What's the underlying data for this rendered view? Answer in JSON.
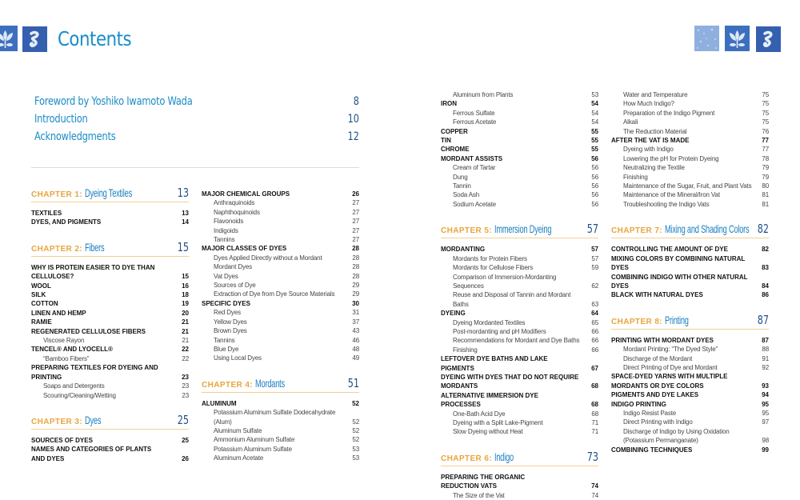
{
  "title": "Contents",
  "colors": {
    "title_blue": "#1a8cc8",
    "chapter_orange": "#e9a53c",
    "tile_blue": "#3d6fbf"
  },
  "front_matter": [
    {
      "text": "Foreword by Yoshiko Iwamoto Wada",
      "page": "8"
    },
    {
      "text": "Introduction",
      "page": "10"
    },
    {
      "text": "Acknowledgments",
      "page": "12"
    }
  ],
  "columns": [
    [
      {
        "type": "chapter",
        "label": "CHAPTER 1:",
        "text": "Dyeing Textiles",
        "page": "13"
      },
      {
        "type": "main",
        "text": "TEXTILES",
        "page": "13"
      },
      {
        "type": "main",
        "text": "DYES, AND PIGMENTS",
        "page": "14"
      },
      {
        "type": "chapter",
        "label": "CHAPTER 2:",
        "text": "Fibers",
        "page": "15"
      },
      {
        "type": "main",
        "text": "WHY IS PROTEIN EASIER TO DYE THAN\nCELLULOSE?",
        "page": "15"
      },
      {
        "type": "main",
        "text": "WOOL",
        "page": "16"
      },
      {
        "type": "main",
        "text": "SILK",
        "page": "18"
      },
      {
        "type": "main",
        "text": "COTTON",
        "page": "19"
      },
      {
        "type": "main",
        "text": "LINEN AND HEMP",
        "page": "20"
      },
      {
        "type": "main",
        "text": "RAMIE",
        "page": "21"
      },
      {
        "type": "main",
        "text": "REGENERATED CELLULOSE FIBERS",
        "page": "21"
      },
      {
        "type": "sub",
        "text": "Viscose Rayon",
        "page": "21"
      },
      {
        "type": "main",
        "text": "TENCEL® AND LYOCELL®",
        "page": "22"
      },
      {
        "type": "sub",
        "text": "“Bamboo Fibers”",
        "page": "22"
      },
      {
        "type": "main",
        "text": "PREPARING TEXTILES FOR DYEING AND\nPRINTING",
        "page": "23"
      },
      {
        "type": "sub",
        "text": "Soaps and Detergents",
        "page": "23"
      },
      {
        "type": "sub",
        "text": "Scouring/Cleaning/Wetting",
        "page": "23"
      },
      {
        "type": "chapter",
        "label": "CHAPTER 3:",
        "text": "Dyes",
        "page": "25"
      },
      {
        "type": "main",
        "text": "SOURCES OF DYES",
        "page": "25"
      },
      {
        "type": "main",
        "text": "NAMES AND CATEGORIES OF PLANTS\nAND DYES",
        "page": "26"
      }
    ],
    [
      {
        "type": "main",
        "text": "MAJOR CHEMICAL GROUPS",
        "page": "26"
      },
      {
        "type": "sub",
        "text": "Anthraquinoids",
        "page": "27"
      },
      {
        "type": "sub",
        "text": "Naphthoquinoids",
        "page": "27"
      },
      {
        "type": "sub",
        "text": "Flavonoids",
        "page": "27"
      },
      {
        "type": "sub",
        "text": "Indigoids",
        "page": "27"
      },
      {
        "type": "sub",
        "text": "Tannins",
        "page": "27"
      },
      {
        "type": "main",
        "text": "MAJOR CLASSES OF DYES",
        "page": "28"
      },
      {
        "type": "sub",
        "text": "Dyes Applied Directly without a Mordant",
        "page": "28"
      },
      {
        "type": "sub",
        "text": "Mordant Dyes",
        "page": "28"
      },
      {
        "type": "sub",
        "text": "Vat Dyes",
        "page": "28"
      },
      {
        "type": "sub",
        "text": "Sources of Dye",
        "page": "29"
      },
      {
        "type": "sub",
        "text": "Extraction of Dye from Dye Source Materials",
        "page": "29"
      },
      {
        "type": "main",
        "text": "SPECIFIC DYES",
        "page": "30"
      },
      {
        "type": "sub",
        "text": "Red Dyes",
        "page": "31"
      },
      {
        "type": "sub",
        "text": "Yellow Dyes",
        "page": "37"
      },
      {
        "type": "sub",
        "text": "Brown Dyes",
        "page": "43"
      },
      {
        "type": "sub",
        "text": "Tannins",
        "page": "46"
      },
      {
        "type": "sub",
        "text": "Blue Dye",
        "page": "48"
      },
      {
        "type": "sub",
        "text": "Using Local Dyes",
        "page": "49"
      },
      {
        "type": "chapter",
        "label": "CHAPTER 4:",
        "text": "Mordants",
        "page": "51"
      },
      {
        "type": "main",
        "text": "ALUMINUM",
        "page": "52"
      },
      {
        "type": "sub",
        "text": "Potassium Aluminum Sulfate Dodecahydrate\n    (Alum)",
        "page": "52"
      },
      {
        "type": "sub",
        "text": "Aluminum Sulfate",
        "page": "52"
      },
      {
        "type": "sub",
        "text": "Ammonium Aluminum Sulfate",
        "page": "52"
      },
      {
        "type": "sub",
        "text": "Potassium Aluminum Sulfate",
        "page": "53"
      },
      {
        "type": "sub",
        "text": "Aluminum Acetate",
        "page": "53"
      }
    ],
    [
      {
        "type": "sub",
        "text": "Aluminum from Plants",
        "page": "53"
      },
      {
        "type": "main",
        "text": "IRON",
        "page": "54"
      },
      {
        "type": "sub",
        "text": "Ferrous Sulfate",
        "page": "54"
      },
      {
        "type": "sub",
        "text": "Ferrous Acetate",
        "page": "54"
      },
      {
        "type": "main",
        "text": "COPPER",
        "page": "55"
      },
      {
        "type": "main",
        "text": "TIN",
        "page": "55"
      },
      {
        "type": "main",
        "text": "CHROME",
        "page": "55"
      },
      {
        "type": "main",
        "text": "MORDANT ASSISTS",
        "page": "56"
      },
      {
        "type": "sub",
        "text": "Cream of Tartar",
        "page": "56"
      },
      {
        "type": "sub",
        "text": "Dung",
        "page": "56"
      },
      {
        "type": "sub",
        "text": "Tannin",
        "page": "56"
      },
      {
        "type": "sub",
        "text": "Soda Ash",
        "page": "56"
      },
      {
        "type": "sub",
        "text": "Sodium Acetate",
        "page": "56"
      },
      {
        "type": "chapter",
        "label": "CHAPTER 5:",
        "text": "Immersion Dyeing",
        "page": "57"
      },
      {
        "type": "main",
        "text": "MORDANTING",
        "page": "57"
      },
      {
        "type": "sub",
        "text": "Mordants for Protein Fibers",
        "page": "57"
      },
      {
        "type": "sub",
        "text": "Mordants for Cellulose Fibers",
        "page": "59"
      },
      {
        "type": "sub",
        "text": "Comparison of Immersion-Mordanting Sequences",
        "page": "62"
      },
      {
        "type": "sub",
        "text": "Reuse and Disposal of Tannin and Mordant Baths",
        "page": "63"
      },
      {
        "type": "main",
        "text": "DYEING",
        "page": "64"
      },
      {
        "type": "sub",
        "text": "Dyeing Mordanted Textiles",
        "page": "65"
      },
      {
        "type": "sub",
        "text": "Post-mordanting and pH Modifiers",
        "page": "66"
      },
      {
        "type": "sub",
        "text": "Recommendations for Mordant and Dye Baths",
        "page": "66"
      },
      {
        "type": "sub",
        "text": "Finishing",
        "page": "66"
      },
      {
        "type": "main",
        "text": "LEFTOVER DYE BATHS AND LAKE PIGMENTS",
        "page": "67"
      },
      {
        "type": "main",
        "text": "DYEING WITH DYES THAT DO NOT REQUIRE\nMORDANTS",
        "page": "68"
      },
      {
        "type": "main",
        "text": "ALTERNATIVE IMMERSION DYE PROCESSES",
        "page": "68"
      },
      {
        "type": "sub",
        "text": "One-Bath Acid Dye",
        "page": "68"
      },
      {
        "type": "sub",
        "text": "Dyeing with a Split Lake-Pigment",
        "page": "71"
      },
      {
        "type": "sub",
        "text": "Slow Dyeing without Heat",
        "page": "71"
      },
      {
        "type": "chapter",
        "label": "CHAPTER 6:",
        "text": "Indigo",
        "page": "73"
      },
      {
        "type": "main",
        "text": "PREPARING THE ORGANIC\nREDUCTION VATS",
        "page": "74"
      },
      {
        "type": "sub",
        "text": "The Size of the Vat",
        "page": "74"
      }
    ],
    [
      {
        "type": "sub",
        "text": "Water and Temperature",
        "page": "75"
      },
      {
        "type": "sub",
        "text": "How Much Indigo?",
        "page": "75"
      },
      {
        "type": "sub",
        "text": "Preparation of the Indigo Pigment",
        "page": "75"
      },
      {
        "type": "sub",
        "text": "Alkali",
        "page": "75"
      },
      {
        "type": "sub",
        "text": "The Reduction Material",
        "page": "76"
      },
      {
        "type": "main",
        "text": "AFTER THE VAT IS MADE",
        "page": "77"
      },
      {
        "type": "sub",
        "text": "Dyeing with Indigo",
        "page": "77"
      },
      {
        "type": "sub",
        "text": "Lowering the pH for Protein Dyeing",
        "page": "78"
      },
      {
        "type": "sub",
        "text": "Neutralizing the Textile",
        "page": "79"
      },
      {
        "type": "sub",
        "text": "Finishing",
        "page": "79"
      },
      {
        "type": "sub",
        "text": "Maintenance of the Sugar, Fruit, and Plant Vats",
        "page": "80"
      },
      {
        "type": "sub",
        "text": "Maintenance of the Mineral/Iron Vat",
        "page": "81"
      },
      {
        "type": "sub",
        "text": "Troubleshooting the Indigo Vats",
        "page": "81"
      },
      {
        "type": "chapter",
        "label": "CHAPTER 7:",
        "text": "Mixing and Shading Colors",
        "page": "82"
      },
      {
        "type": "main",
        "text": "CONTROLLING THE AMOUNT OF DYE",
        "page": "82"
      },
      {
        "type": "main",
        "text": "MIXING COLORS BY COMBINING NATURAL\nDYES",
        "page": "83"
      },
      {
        "type": "main",
        "text": "COMBINING INDIGO WITH OTHER NATURAL\nDYES",
        "page": "84"
      },
      {
        "type": "main",
        "text": "BLACK WITH NATURAL DYES",
        "page": "86"
      },
      {
        "type": "chapter",
        "label": "CHAPTER 8:",
        "text": "Printing",
        "page": "87"
      },
      {
        "type": "main",
        "text": "PRINTING WITH MORDANT DYES",
        "page": "87"
      },
      {
        "type": "sub",
        "text": "Mordant Printing: “The Dyed Style”",
        "page": "88"
      },
      {
        "type": "sub",
        "text": "Discharge of the Mordant",
        "page": "91"
      },
      {
        "type": "sub",
        "text": "Direct Printing of Dye and Mordant",
        "page": "92"
      },
      {
        "type": "main",
        "text": "SPACE-DYED YARNS WITH MULTIPLE\nMORDANTS OR DYE COLORS",
        "page": "93"
      },
      {
        "type": "main",
        "text": "PIGMENTS AND DYE LAKES",
        "page": "94"
      },
      {
        "type": "main",
        "text": "INDIGO PRINTING",
        "page": "95"
      },
      {
        "type": "sub",
        "text": "Indigo Resist Paste",
        "page": "95"
      },
      {
        "type": "sub",
        "text": "Direct Printing with Indigo",
        "page": "97"
      },
      {
        "type": "sub",
        "text": "Discharge of Indigo by Using Oxidation\n    (Potassium Permanganate)",
        "page": "98"
      },
      {
        "type": "main",
        "text": "COMBINING TECHNIQUES",
        "page": "99"
      }
    ]
  ]
}
